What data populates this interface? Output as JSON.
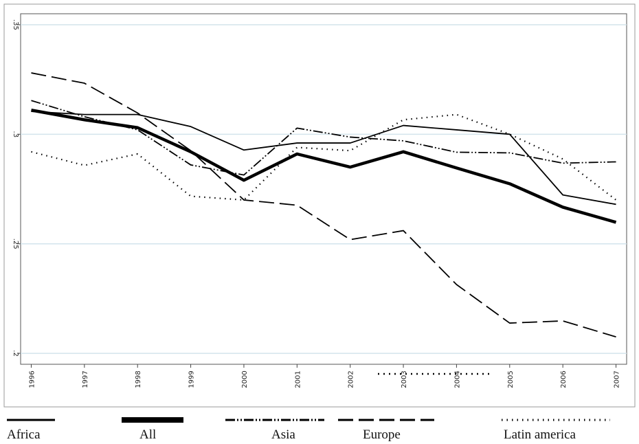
{
  "chart_data": {
    "type": "line",
    "x": [
      1996,
      1997,
      1998,
      1999,
      2000,
      2001,
      2002,
      2003,
      2004,
      2005,
      2006,
      2007
    ],
    "xlim": [
      1995.8,
      2007.2
    ],
    "xticks": [
      1996,
      1997,
      1998,
      1999,
      2000,
      2001,
      2002,
      2003,
      2004,
      2005,
      2006,
      2007
    ],
    "ylim": [
      0.195,
      0.355
    ],
    "yticks": [
      {
        "value": 0.2,
        "label": ".2"
      },
      {
        "value": 0.25,
        "label": ".25"
      },
      {
        "value": 0.3,
        "label": ".3"
      },
      {
        "value": 0.35,
        "label": ".35"
      }
    ],
    "grid": true,
    "legend": "bottom",
    "series": [
      {
        "name": "Africa",
        "color": "#000000",
        "values": [
          0.3104,
          0.309,
          0.309,
          0.3035,
          0.2928,
          0.296,
          0.296,
          0.304,
          0.302,
          0.3,
          0.2723,
          0.268
        ]
      },
      {
        "name": "All",
        "color": "#000000",
        "values": [
          0.311,
          0.3066,
          0.303,
          0.292,
          0.279,
          0.291,
          0.285,
          0.292,
          0.2846,
          0.2774,
          0.2667,
          0.2598
        ]
      },
      {
        "name": "Asia",
        "color": "#000000",
        "values": [
          0.3154,
          0.308,
          0.302,
          0.286,
          0.2814,
          0.3028,
          0.2987,
          0.297,
          0.2918,
          0.2915,
          0.2868,
          0.2874
        ]
      },
      {
        "name": "Europe",
        "color": "#000000",
        "values": [
          0.328,
          0.3233,
          0.3097,
          0.2925,
          0.27,
          0.2676,
          0.2519,
          0.256,
          0.2314,
          0.2138,
          0.2148,
          0.2075
        ]
      },
      {
        "name": "Latin america",
        "color": "#000000",
        "values": [
          0.292,
          0.2858,
          0.291,
          0.2717,
          0.27,
          0.294,
          0.2925,
          0.3066,
          0.309,
          0.3,
          0.2887,
          0.27
        ]
      }
    ]
  }
}
